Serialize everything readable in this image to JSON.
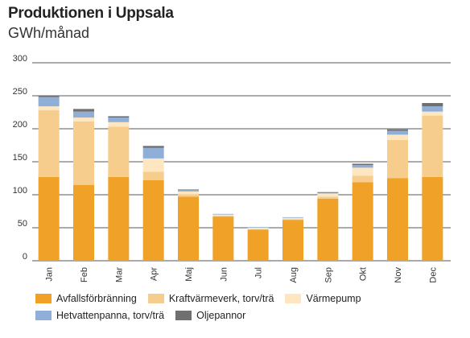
{
  "chart_data": {
    "type": "bar",
    "stacked": true,
    "title": "Produktionen i Uppsala",
    "subtitle": "GWh/månad",
    "xlabel": "",
    "ylabel": "",
    "ylim": [
      0,
      300
    ],
    "yticks": [
      0,
      50,
      100,
      150,
      200,
      250,
      300
    ],
    "grid": true,
    "legend_position": "bottom",
    "categories": [
      "Jan",
      "Feb",
      "Mar",
      "Apr",
      "Maj",
      "Jun",
      "Jul",
      "Aug",
      "Sep",
      "Okt",
      "Nov",
      "Dec"
    ],
    "series": [
      {
        "name": "Avfallsförbränning",
        "color": "#f0a128",
        "values": [
          127,
          115,
          127,
          122,
          97,
          67,
          47,
          62,
          94,
          119,
          125,
          127
        ]
      },
      {
        "name": "Kraftvärmeverk, torv/trä",
        "color": "#f6cd8c",
        "values": [
          101,
          96,
          76,
          13,
          4,
          1,
          1,
          1,
          3,
          10,
          58,
          93
        ]
      },
      {
        "name": "Värmepump",
        "color": "#fde6c0",
        "values": [
          6,
          6,
          7,
          20,
          4,
          2,
          2,
          2,
          5,
          12,
          8,
          6
        ]
      },
      {
        "name": "Hetvattenpanna, torv/trä",
        "color": "#8fafd8",
        "values": [
          14,
          9,
          7,
          16,
          2,
          1,
          1,
          1,
          1,
          4,
          6,
          8
        ]
      },
      {
        "name": "Oljepannor",
        "color": "#6f6f6f",
        "values": [
          2,
          4,
          2,
          3,
          1,
          0,
          0,
          0,
          1,
          2,
          2,
          5
        ]
      }
    ]
  }
}
